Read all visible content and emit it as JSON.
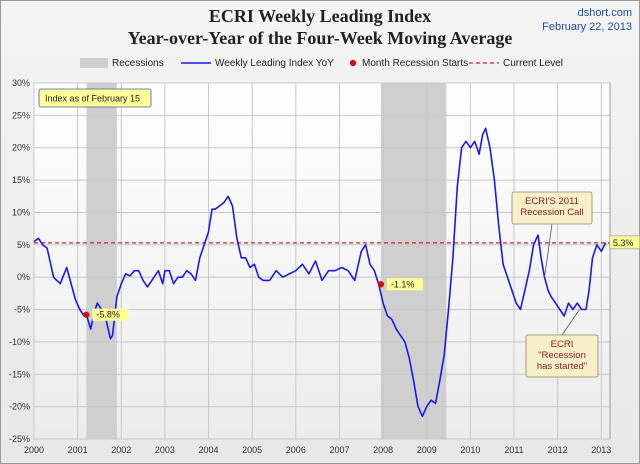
{
  "title": "ECRI Weekly Leading Index",
  "subtitle": "Year-over-Year of the Four-Week Moving Average",
  "source": "dshort.com",
  "date": "February 22, 2013",
  "colors": {
    "series": "#1a1ae6",
    "recession": "#cfcfcf",
    "current_level": "#cc2222",
    "marker": "#cc1111",
    "label_bg": "#ffff99",
    "callout_bg": "#f6f0c8"
  },
  "chart_data": {
    "type": "line",
    "ylim": [
      -25,
      30
    ],
    "xlim": [
      2000,
      2013.2
    ],
    "yticks": [
      "30%",
      "25%",
      "20%",
      "15%",
      "10%",
      "5%",
      "0%",
      "-5%",
      "-10%",
      "-15%",
      "-20%",
      "-25%"
    ],
    "ytick_values": [
      30,
      25,
      20,
      15,
      10,
      5,
      0,
      -5,
      -10,
      -15,
      -20,
      -25
    ],
    "xticks": [
      "2000",
      "2001",
      "2002",
      "2003",
      "2004",
      "2005",
      "2006",
      "2007",
      "2008",
      "2009",
      "2010",
      "2011",
      "2012",
      "2013"
    ],
    "xtick_values": [
      2000,
      2001,
      2002,
      2003,
      2004,
      2005,
      2006,
      2007,
      2008,
      2009,
      2010,
      2011,
      2012,
      2013
    ],
    "grid": true,
    "legend": [
      "Recessions",
      "Weekly Leading Index YoY",
      "Month Recession Starts",
      "Current Level"
    ],
    "legend_placement": "top",
    "recessions": [
      [
        2001.2,
        2001.9
      ],
      [
        2007.95,
        2009.45
      ]
    ],
    "current_level": 5.3,
    "series": [
      {
        "name": "Weekly Leading Index YoY",
        "x": [
          2000.0,
          2000.1,
          2000.2,
          2000.3,
          2000.45,
          2000.6,
          2000.75,
          2000.85,
          2000.95,
          2001.05,
          2001.15,
          2001.2,
          2001.3,
          2001.38,
          2001.45,
          2001.55,
          2001.65,
          2001.75,
          2001.8,
          2001.9,
          2002.0,
          2002.1,
          2002.2,
          2002.3,
          2002.4,
          2002.5,
          2002.6,
          2002.75,
          2002.85,
          2002.95,
          2003.0,
          2003.1,
          2003.2,
          2003.3,
          2003.4,
          2003.5,
          2003.6,
          2003.7,
          2003.8,
          2003.9,
          2004.0,
          2004.08,
          2004.15,
          2004.25,
          2004.35,
          2004.45,
          2004.55,
          2004.65,
          2004.75,
          2004.85,
          2004.95,
          2005.05,
          2005.15,
          2005.25,
          2005.4,
          2005.55,
          2005.7,
          2005.85,
          2006.0,
          2006.15,
          2006.3,
          2006.45,
          2006.6,
          2006.75,
          2006.9,
          2007.05,
          2007.2,
          2007.35,
          2007.5,
          2007.6,
          2007.7,
          2007.8,
          2007.9,
          2008.0,
          2008.1,
          2008.2,
          2008.3,
          2008.4,
          2008.5,
          2008.6,
          2008.7,
          2008.8,
          2008.9,
          2009.0,
          2009.1,
          2009.2,
          2009.3,
          2009.4,
          2009.5,
          2009.6,
          2009.7,
          2009.8,
          2009.9,
          2010.0,
          2010.1,
          2010.2,
          2010.28,
          2010.35,
          2010.45,
          2010.55,
          2010.65,
          2010.75,
          2010.85,
          2010.95,
          2011.05,
          2011.15,
          2011.25,
          2011.35,
          2011.45,
          2011.55,
          2011.62,
          2011.7,
          2011.78,
          2011.85,
          2011.95,
          2012.05,
          2012.15,
          2012.25,
          2012.35,
          2012.45,
          2012.55,
          2012.65,
          2012.72,
          2012.8,
          2012.9,
          2013.0,
          2013.1
        ],
        "values": [
          5.5,
          6,
          5,
          4.5,
          0,
          -1,
          1.5,
          -1,
          -3.5,
          -5,
          -6,
          -5.8,
          -8,
          -5.5,
          -4,
          -5,
          -6.5,
          -9.5,
          -9,
          -3,
          -1,
          0.5,
          0.2,
          1,
          1,
          -0.5,
          -1.5,
          0,
          1,
          -1,
          1,
          1,
          -1,
          0,
          0,
          1,
          0.5,
          -0.5,
          3,
          5,
          7,
          10.5,
          10.5,
          11,
          11.5,
          12.5,
          11,
          6,
          3,
          3,
          1.5,
          2,
          0,
          -0.5,
          -0.5,
          1,
          0,
          0.5,
          1,
          2,
          0.5,
          2.5,
          -0.5,
          1,
          1,
          1.5,
          1,
          -0.5,
          4,
          5,
          2,
          1,
          -1.1,
          -4,
          -6,
          -6.5,
          -8,
          -9,
          -10,
          -12.5,
          -16,
          -20,
          -21.5,
          -20,
          -19,
          -19.5,
          -16,
          -12,
          -5,
          3,
          14,
          20,
          21,
          20,
          21,
          19,
          22,
          23,
          20,
          15,
          8,
          2,
          0,
          -2,
          -4,
          -5,
          -2,
          1,
          5,
          6.5,
          3,
          0,
          -2,
          -3,
          -4,
          -5,
          -6,
          -4,
          -5,
          -4,
          -5,
          -5,
          -2,
          3,
          5,
          4,
          5.3
        ]
      }
    ],
    "recession_starts": [
      {
        "x": 2001.2,
        "y": -5.8,
        "label": "-5.8%"
      },
      {
        "x": 2007.95,
        "y": -1.1,
        "label": "-1.1%"
      }
    ],
    "current_label": "5.3%",
    "note": "Index as of February 15",
    "callouts": [
      {
        "lines": [
          "ECRI'S 2011",
          "Recession Call"
        ],
        "x": 2011.7,
        "y": 0
      },
      {
        "lines": [
          "ECRI",
          "\"Recession",
          "has started\""
        ],
        "x": 2012.5,
        "y": -5
      }
    ]
  }
}
